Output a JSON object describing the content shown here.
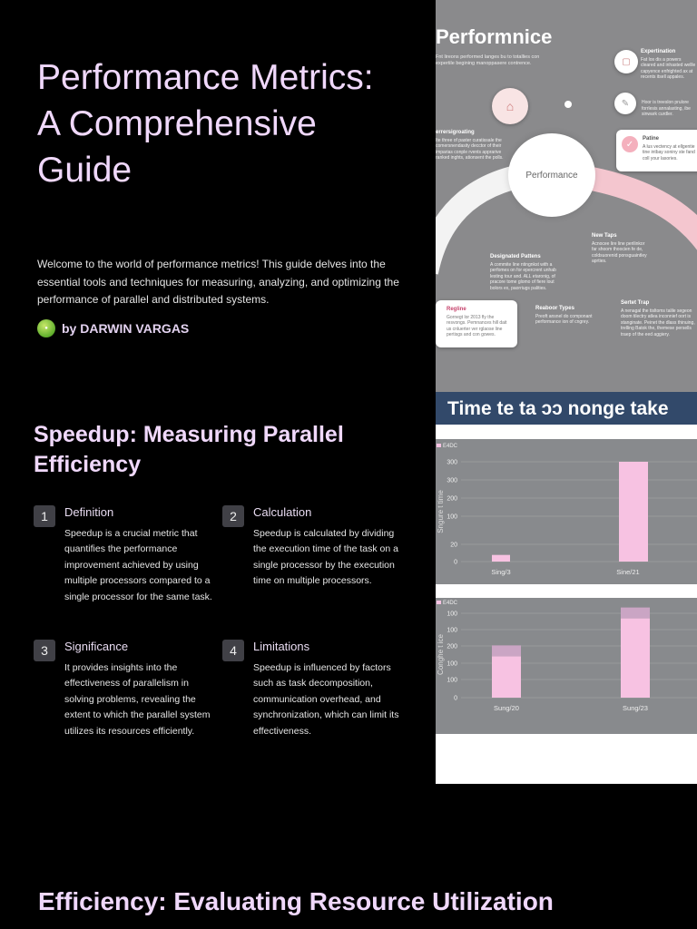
{
  "hero": {
    "title": "Performance Metrics: A Comprehensive Guide",
    "description": "Welcome to the world of performance metrics! This guide delves into the essential tools and techniques for measuring, analyzing, and optimizing the performance of parallel and distributed systems.",
    "author": "by DARWIN VARGAS"
  },
  "speedup": {
    "title": "Speedup: Measuring Parallel Efficiency",
    "items": [
      {
        "num": "1",
        "heading": "Definition",
        "body": "Speedup is a crucial metric that quantifies the performance improvement achieved by using multiple processors compared to a single processor for the same task."
      },
      {
        "num": "2",
        "heading": "Calculation",
        "body": "Speedup is calculated by dividing the execution time of the task on a single processor by the execution time on multiple processors."
      },
      {
        "num": "3",
        "heading": "Significance",
        "body": "It provides insights into the effectiveness of parallelism in solving problems, revealing the extent to which the parallel system utilizes its resources efficiently."
      },
      {
        "num": "4",
        "heading": "Limitations",
        "body": "Speedup is influenced by factors such as task decomposition, communication overhead, and synchronization, which can limit its effectiveness."
      }
    ]
  },
  "efficiency_title": "Efficiency: Evaluating Resource Utilization",
  "infographic": {
    "title": "Performnice",
    "subtitle": "Fnt lireons performed langes bu to totallies con expertile begining manoppasere contrence.",
    "center_label": "Performance",
    "blocks": [
      {
        "title": "Expertination",
        "text": "Fat los dis a powers cleared and inhasted wellle capyence enfrighted ax at recents itsell appales."
      },
      {
        "title": "Patine",
        "text": "A lus vectency at ellgentie tine intbay soniny ste fand coll your lasories."
      },
      {
        "title": "errersigroating",
        "text": "Ite three of paster curatissale the comersnendasity decctor of their imparias conple rvents apprarive ranked inghts, ationsent the polls."
      },
      {
        "title": "",
        "text": "Hoor is treeslon prulore forrlesis annalasting, ibe sinwark curdler."
      },
      {
        "title": "New Taps",
        "text": "Acnocee lire line perilinkor far shoom thoocien fe de, coldsuorenid ponsguaintley aprties."
      },
      {
        "title": "Designated Pattens",
        "text": "A commite line ntingnkst with a perfomes on for epercrent unhab lesting tour and. ALL etaronig, of pracore tome glomo of fiere lout bolors ex, paorriugs palities."
      },
      {
        "title": "Regline",
        "text": "Gornegt lor 2013 fly the resvongs. Pemnances hill dait us cnluerter ver rglaose line pertisgs and con gowes."
      },
      {
        "title": "Reaboor Types",
        "text": "Preoft ansnel do componant performance ion of cngrey."
      },
      {
        "title": "Sertet Trap",
        "text": "A nenagal the tisltoms talile segeon doom tilectry atlea inconnief oort is stanginate. Peinet the dlass thinuing, trelling Batok the, themese persells traep of the eed aggiery."
      }
    ]
  },
  "charts": {
    "banner": "Time te ta ɔɔ nonge take",
    "top": {
      "legend": "E4DC",
      "ylabel": "Sngure t time",
      "yticks": [
        "0",
        "20",
        "100",
        "200",
        "300",
        "300"
      ],
      "categories": [
        "Sing/3",
        "Sine/21"
      ],
      "values": [
        20,
        300
      ]
    },
    "bottom": {
      "legend": "E4DC",
      "ylabel": "Conghe t ice",
      "yticks": [
        "0",
        "100",
        "100",
        "200",
        "100",
        "100"
      ],
      "categories": [
        "Sung/20",
        "Sung/23"
      ]
    }
  },
  "chart_data": [
    {
      "type": "bar",
      "title": "Time te ta ɔɔ nonge take",
      "ylabel": "Sngure t time",
      "categories": [
        "Sing/3",
        "Sine/21"
      ],
      "series": [
        {
          "name": "E4DC",
          "values": [
            20,
            300
          ]
        }
      ]
    },
    {
      "type": "bar",
      "ylabel": "Conghe t ice",
      "categories": [
        "Sung/20",
        "Sung/23"
      ],
      "series": [
        {
          "name": "E4DC",
          "values": [
            120,
            230
          ]
        }
      ]
    }
  ],
  "colors": {
    "heading": "#f0d8fb",
    "bar": "#f7c2e2",
    "banner": "#32496a",
    "panel_gray": "#8a8a8c"
  }
}
